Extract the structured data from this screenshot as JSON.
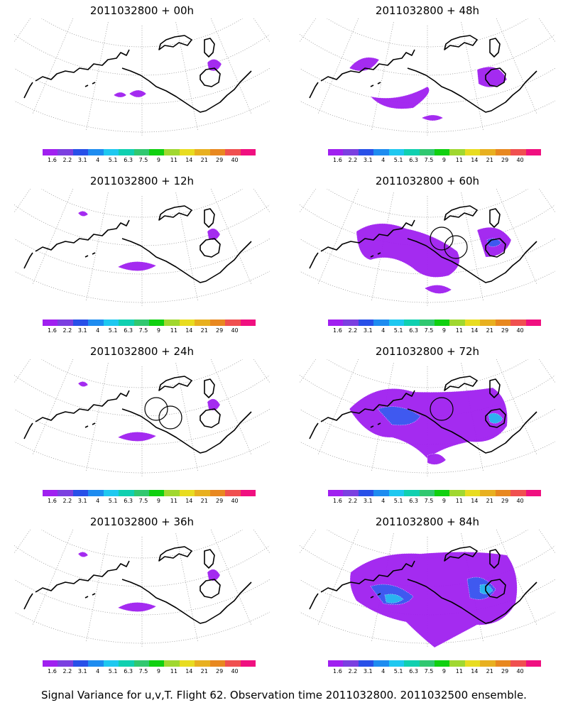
{
  "figure": {
    "caption": "Signal Variance for u,v,T. Flight 62. Observation time 2011032800. 2011032500 ensemble."
  },
  "colorbar": {
    "labels": [
      "1.6",
      "2.2",
      "3.1",
      "4",
      "5.1",
      "6.3",
      "7.5",
      "9",
      "11",
      "14",
      "21",
      "29",
      "40"
    ],
    "colors": [
      "#a020f0",
      "#7b3fe0",
      "#2850e8",
      "#1e8cf0",
      "#1ec8f0",
      "#10d0b0",
      "#30c870",
      "#10d010",
      "#a0d830",
      "#e8dc20",
      "#e8b020",
      "#e88820",
      "#f05050",
      "#f01080"
    ]
  },
  "panels": [
    {
      "title": "2011032800 + 00h",
      "intensity": 0,
      "circles": 0
    },
    {
      "title": "2011032800 + 48h",
      "intensity": 2,
      "circles": 0
    },
    {
      "title": "2011032800 + 12h",
      "intensity": 1,
      "circles": 0
    },
    {
      "title": "2011032800 + 60h",
      "intensity": 3,
      "circles": 2
    },
    {
      "title": "2011032800 + 24h",
      "intensity": 1,
      "circles": 2
    },
    {
      "title": "2011032800 + 72h",
      "intensity": 4,
      "circles": 1
    },
    {
      "title": "2011032800 + 36h",
      "intensity": 1,
      "circles": 0
    },
    {
      "title": "2011032800 + 84h",
      "intensity": 5,
      "circles": 0
    }
  ]
}
